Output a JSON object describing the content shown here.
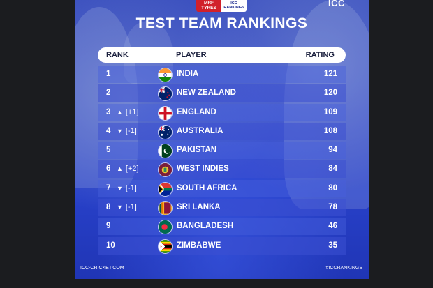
{
  "sponsor": {
    "mrf": "MRF TYRES",
    "icc_rankings": "ICC RANKINGS"
  },
  "brand": "ICC",
  "title": "TEST TEAM RANKINGS",
  "headers": {
    "rank": "RANK",
    "player": "PLAYER",
    "rating": "RATING"
  },
  "rows": [
    {
      "rank": "1",
      "movement": "",
      "direction": "",
      "team": "INDIA",
      "rating": "121",
      "flag": "india-flag"
    },
    {
      "rank": "2",
      "movement": "",
      "direction": "",
      "team": "NEW ZEALAND",
      "rating": "120",
      "flag": "new-zealand-flag"
    },
    {
      "rank": "3",
      "movement": "[+1]",
      "direction": "up",
      "team": "ENGLAND",
      "rating": "109",
      "flag": "england-flag"
    },
    {
      "rank": "4",
      "movement": "[-1]",
      "direction": "down",
      "team": "AUSTRALIA",
      "rating": "108",
      "flag": "australia-flag"
    },
    {
      "rank": "5",
      "movement": "",
      "direction": "",
      "team": "PAKISTAN",
      "rating": "94",
      "flag": "pakistan-flag"
    },
    {
      "rank": "6",
      "movement": "[+2]",
      "direction": "up",
      "team": "WEST INDIES",
      "rating": "84",
      "flag": "west-indies-flag"
    },
    {
      "rank": "7",
      "movement": "[-1]",
      "direction": "down",
      "team": "SOUTH AFRICA",
      "rating": "80",
      "flag": "south-africa-flag"
    },
    {
      "rank": "8",
      "movement": "[-1]",
      "direction": "down",
      "team": "SRI LANKA",
      "rating": "78",
      "flag": "sri-lanka-flag"
    },
    {
      "rank": "9",
      "movement": "",
      "direction": "",
      "team": "BANGLADESH",
      "rating": "46",
      "flag": "bangladesh-flag"
    },
    {
      "rank": "10",
      "movement": "",
      "direction": "",
      "team": "ZIMBABWE",
      "rating": "35",
      "flag": "zimbabwe-flag"
    }
  ],
  "footer": {
    "left": "ICC-CRICKET.COM",
    "right": "#ICCRANKINGS"
  },
  "arrows": {
    "up": "▲",
    "down": "▼"
  },
  "colors": {
    "background": "#2740c8",
    "page": "#1b1c1f",
    "header_bar": "#ffffff",
    "sponsor_red": "#d1202a"
  }
}
